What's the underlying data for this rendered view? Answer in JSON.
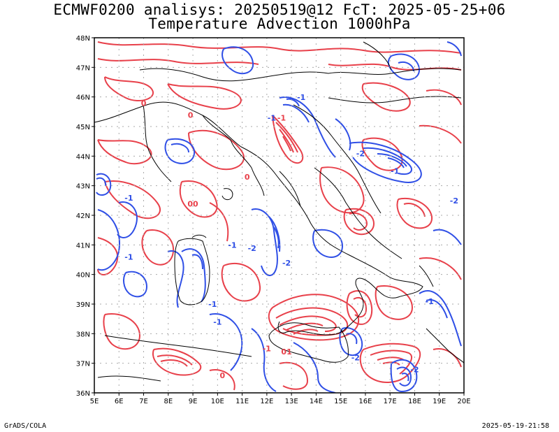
{
  "title_line1": "ECMWF0200 analisys: 20250519@12 FcT: 2025-05-25+06",
  "title_line2": "Temperature Advection 1000hPa",
  "credit": "GrADS/COLA",
  "timestamp": "2025-05-19-21:58",
  "colors": {
    "positive": "#e8404a",
    "negative": "#2f4fe6",
    "coast": "#000000",
    "grid": "#aaaaaa"
  },
  "axes": {
    "lon_labels": [
      "5E",
      "6E",
      "7E",
      "8E",
      "9E",
      "10E",
      "11E",
      "12E",
      "13E",
      "14E",
      "15E",
      "16E",
      "17E",
      "18E",
      "19E",
      "20E"
    ],
    "lat_labels": [
      "36N",
      "37N",
      "38N",
      "39N",
      "40N",
      "41N",
      "42N",
      "43N",
      "44N",
      "45N",
      "46N",
      "47N",
      "48N"
    ]
  },
  "map_data": {
    "lon_range": [
      5,
      20
    ],
    "lat_range": [
      36,
      48
    ],
    "contour_labels": [
      {
        "text": "-1",
        "lon": 13.4,
        "lat": 45.9,
        "sign": "neg"
      },
      {
        "text": "-1",
        "lon": 12.2,
        "lat": 45.2,
        "sign": "neg"
      },
      {
        "text": "-2",
        "lon": 15.8,
        "lat": 44.0,
        "sign": "neg"
      },
      {
        "text": "-1",
        "lon": 17.2,
        "lat": 43.4,
        "sign": "neg"
      },
      {
        "text": "-1",
        "lon": 6.4,
        "lat": 42.5,
        "sign": "neg"
      },
      {
        "text": "-2",
        "lon": 19.6,
        "lat": 42.4,
        "sign": "neg"
      },
      {
        "text": "-1",
        "lon": 10.6,
        "lat": 40.9,
        "sign": "neg"
      },
      {
        "text": "-2",
        "lon": 11.4,
        "lat": 40.8,
        "sign": "neg"
      },
      {
        "text": "-1",
        "lon": 6.4,
        "lat": 40.5,
        "sign": "neg"
      },
      {
        "text": "-2",
        "lon": 12.8,
        "lat": 40.3,
        "sign": "neg"
      },
      {
        "text": "-1",
        "lon": 9.8,
        "lat": 38.9,
        "sign": "neg"
      },
      {
        "text": "-1",
        "lon": 10.0,
        "lat": 38.3,
        "sign": "neg"
      },
      {
        "text": "-2",
        "lon": 15.6,
        "lat": 37.1,
        "sign": "neg"
      },
      {
        "text": "-2",
        "lon": 18.0,
        "lat": 36.7,
        "sign": "neg"
      },
      {
        "text": "-1",
        "lon": 18.6,
        "lat": 39.0,
        "sign": "neg"
      },
      {
        "text": "0",
        "lon": 7.0,
        "lat": 45.7,
        "sign": "pos"
      },
      {
        "text": "0",
        "lon": 8.9,
        "lat": 45.3,
        "sign": "pos"
      },
      {
        "text": "-1",
        "lon": 12.6,
        "lat": 45.2,
        "sign": "pos"
      },
      {
        "text": "0",
        "lon": 11.2,
        "lat": 43.2,
        "sign": "pos"
      },
      {
        "text": "00",
        "lon": 9.0,
        "lat": 42.3,
        "sign": "pos"
      },
      {
        "text": "-1",
        "lon": 12.0,
        "lat": 37.4,
        "sign": "pos"
      },
      {
        "text": "01",
        "lon": 12.8,
        "lat": 37.3,
        "sign": "pos"
      },
      {
        "text": "0",
        "lon": 10.2,
        "lat": 36.5,
        "sign": "pos"
      }
    ]
  }
}
